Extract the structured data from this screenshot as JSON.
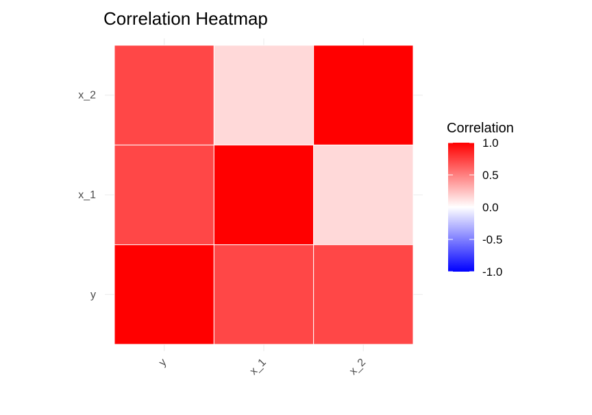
{
  "chart_data": {
    "type": "heatmap",
    "title": "Correlation Heatmap",
    "xlabel": "",
    "ylabel": "",
    "x_categories": [
      "y",
      "x_1",
      "x_2"
    ],
    "y_categories": [
      "y",
      "x_1",
      "x_2"
    ],
    "matrix": [
      [
        1.0,
        0.72,
        0.72
      ],
      [
        0.72,
        1.0,
        0.15
      ],
      [
        0.72,
        0.15,
        1.0
      ]
    ],
    "legend": {
      "title": "Correlation",
      "ticks": [
        "1.0",
        "0.5",
        "0.0",
        "-0.5",
        "-1.0"
      ],
      "tick_values": [
        1.0,
        0.5,
        0.0,
        -0.5,
        -1.0
      ],
      "limits": [
        -1.0,
        1.0
      ],
      "position": "right"
    },
    "colors": {
      "low": "#0000ff",
      "mid": "#ffffff",
      "high": "#ff0000"
    },
    "grid": true
  }
}
